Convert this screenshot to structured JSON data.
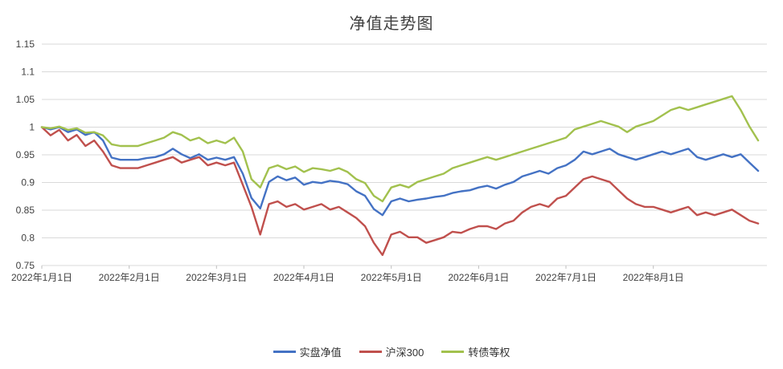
{
  "chart_data": {
    "type": "line",
    "title": "净值走势图",
    "xlabel": "",
    "ylabel": "",
    "xlim": [
      0,
      8.3
    ],
    "ylim": [
      0.75,
      1.15
    ],
    "grid": true,
    "grid_color": "#d9d9d9",
    "axis_color": "#bfbfbf",
    "legend_position": "bottom",
    "x_unit": "months since 2022-01-01",
    "yticks": [
      {
        "value": 0.75,
        "label": "0.75"
      },
      {
        "value": 0.8,
        "label": "0.8"
      },
      {
        "value": 0.85,
        "label": "0.85"
      },
      {
        "value": 0.9,
        "label": "0.9"
      },
      {
        "value": 0.95,
        "label": "0.95"
      },
      {
        "value": 1.0,
        "label": "1"
      },
      {
        "value": 1.05,
        "label": "1.05"
      },
      {
        "value": 1.1,
        "label": "1.1"
      },
      {
        "value": 1.15,
        "label": "1.15"
      }
    ],
    "xticks": [
      {
        "pos": 0,
        "label": "2022年1月1日"
      },
      {
        "pos": 1,
        "label": "2022年2月1日"
      },
      {
        "pos": 2,
        "label": "2022年3月1日"
      },
      {
        "pos": 3,
        "label": "2022年4月1日"
      },
      {
        "pos": 4,
        "label": "2022年5月1日"
      },
      {
        "pos": 5,
        "label": "2022年6月1日"
      },
      {
        "pos": 6,
        "label": "2022年7月1日"
      },
      {
        "pos": 7,
        "label": "2022年8月1日"
      }
    ],
    "x": [
      0,
      0.1,
      0.2,
      0.3,
      0.4,
      0.5,
      0.6,
      0.7,
      0.8,
      0.9,
      1.0,
      1.1,
      1.2,
      1.3,
      1.4,
      1.5,
      1.6,
      1.7,
      1.8,
      1.9,
      2.0,
      2.1,
      2.2,
      2.3,
      2.4,
      2.5,
      2.6,
      2.7,
      2.8,
      2.9,
      3.0,
      3.1,
      3.2,
      3.3,
      3.4,
      3.5,
      3.6,
      3.7,
      3.8,
      3.9,
      4.0,
      4.1,
      4.2,
      4.3,
      4.4,
      4.5,
      4.6,
      4.7,
      4.8,
      4.9,
      5.0,
      5.1,
      5.2,
      5.3,
      5.4,
      5.5,
      5.6,
      5.7,
      5.8,
      5.9,
      6.0,
      6.1,
      6.2,
      6.3,
      6.4,
      6.5,
      6.6,
      6.7,
      6.8,
      6.9,
      7.0,
      7.1,
      7.2,
      7.3,
      7.4,
      7.5,
      7.6,
      7.7,
      7.8,
      7.9,
      8.0,
      8.1,
      8.2
    ],
    "series": [
      {
        "name": "实盘净值",
        "color": "#4472c4",
        "values": [
          1.0,
          0.996,
          1.0,
          0.991,
          0.996,
          0.986,
          0.991,
          0.976,
          0.945,
          0.941,
          0.941,
          0.941,
          0.944,
          0.946,
          0.951,
          0.961,
          0.951,
          0.944,
          0.951,
          0.941,
          0.945,
          0.941,
          0.946,
          0.916,
          0.872,
          0.853,
          0.901,
          0.911,
          0.904,
          0.909,
          0.896,
          0.901,
          0.899,
          0.903,
          0.901,
          0.897,
          0.884,
          0.876,
          0.852,
          0.841,
          0.866,
          0.871,
          0.866,
          0.869,
          0.871,
          0.874,
          0.876,
          0.881,
          0.884,
          0.886,
          0.891,
          0.894,
          0.889,
          0.896,
          0.901,
          0.911,
          0.916,
          0.921,
          0.916,
          0.926,
          0.931,
          0.941,
          0.956,
          0.951,
          0.956,
          0.961,
          0.951,
          0.946,
          0.941,
          0.946,
          0.951,
          0.956,
          0.951,
          0.956,
          0.961,
          0.946,
          0.941,
          0.946,
          0.951,
          0.946,
          0.951,
          0.936,
          0.921
        ]
      },
      {
        "name": "沪深300",
        "color": "#c0504d",
        "values": [
          1.0,
          0.985,
          0.995,
          0.976,
          0.986,
          0.966,
          0.976,
          0.956,
          0.931,
          0.926,
          0.926,
          0.926,
          0.931,
          0.936,
          0.941,
          0.946,
          0.936,
          0.941,
          0.946,
          0.931,
          0.936,
          0.931,
          0.936,
          0.896,
          0.856,
          0.806,
          0.861,
          0.866,
          0.856,
          0.861,
          0.851,
          0.856,
          0.861,
          0.851,
          0.856,
          0.846,
          0.836,
          0.821,
          0.791,
          0.769,
          0.806,
          0.811,
          0.801,
          0.801,
          0.791,
          0.796,
          0.801,
          0.811,
          0.809,
          0.816,
          0.821,
          0.821,
          0.816,
          0.826,
          0.831,
          0.846,
          0.856,
          0.861,
          0.856,
          0.871,
          0.876,
          0.891,
          0.906,
          0.911,
          0.906,
          0.901,
          0.886,
          0.871,
          0.861,
          0.856,
          0.856,
          0.851,
          0.846,
          0.851,
          0.856,
          0.841,
          0.846,
          0.841,
          0.846,
          0.851,
          0.841,
          0.831,
          0.826
        ]
      },
      {
        "name": "转债等权",
        "color": "#a2c14e",
        "values": [
          1.0,
          0.998,
          1.001,
          0.995,
          0.998,
          0.99,
          0.991,
          0.985,
          0.969,
          0.966,
          0.966,
          0.966,
          0.971,
          0.976,
          0.981,
          0.991,
          0.986,
          0.976,
          0.981,
          0.971,
          0.976,
          0.971,
          0.981,
          0.956,
          0.906,
          0.891,
          0.926,
          0.931,
          0.924,
          0.929,
          0.919,
          0.926,
          0.924,
          0.921,
          0.926,
          0.919,
          0.906,
          0.899,
          0.876,
          0.866,
          0.891,
          0.896,
          0.891,
          0.901,
          0.906,
          0.911,
          0.916,
          0.926,
          0.931,
          0.936,
          0.941,
          0.946,
          0.941,
          0.946,
          0.951,
          0.956,
          0.961,
          0.966,
          0.971,
          0.976,
          0.981,
          0.996,
          1.001,
          1.006,
          1.011,
          1.006,
          1.001,
          0.991,
          1.001,
          1.006,
          1.011,
          1.021,
          1.031,
          1.036,
          1.031,
          1.036,
          1.041,
          1.046,
          1.051,
          1.056,
          1.031,
          1.001,
          0.976
        ]
      }
    ]
  }
}
